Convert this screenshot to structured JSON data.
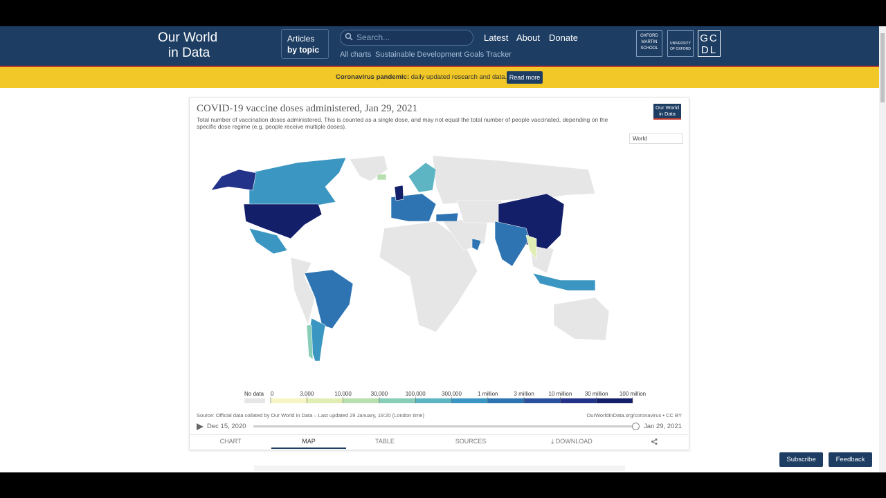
{
  "nav": {
    "logo": [
      "Our World",
      "in Data"
    ],
    "articles": [
      "Articles",
      "by topic"
    ],
    "search_placeholder": "Search...",
    "links": [
      "Latest",
      "About",
      "Donate"
    ],
    "sublinks": [
      "All charts",
      "Sustainable Development Goals Tracker"
    ],
    "partners": [
      "OXFORD MARTIN SCHOOL",
      "UNIVERSITY OF OXFORD",
      "GCDL"
    ]
  },
  "banner": {
    "bold": "Coronavirus pandemic:",
    "text": "daily updated research and data.",
    "button": "Read more"
  },
  "chart": {
    "title": "COVID-19 vaccine doses administered, Jan 29, 2021",
    "subtitle": "Total number of vaccination doses administered. This is counted as a single dose, and may not equal the total number of people vaccinated, depending on the specific dose regime (e.g. people receive multiple doses).",
    "badge": [
      "Our World",
      "in Data"
    ],
    "region_select": "World",
    "legend": {
      "no_data": "No data",
      "no_data_color": "#e6e6e6",
      "labels": [
        "0",
        "3,000",
        "10,000",
        "30,000",
        "100,000",
        "300,000",
        "1 million",
        "3 million",
        "10 million",
        "30 million",
        "100 million"
      ],
      "colors": [
        "#f7f5c5",
        "#e0eeb3",
        "#b7dfb0",
        "#88cdb8",
        "#5db5c3",
        "#3b97c2",
        "#2e74b2",
        "#2b519e",
        "#23338a",
        "#131f68"
      ]
    },
    "source": "Source: Official data collated by Our World in Data – Last updated 29 January, 19:20 (London time)",
    "url": "OurWorldInData.org/coronavirus • CC BY",
    "timeline": {
      "start": "Dec 15, 2020",
      "end": "Jan 29, 2021"
    },
    "tabs": [
      "CHART",
      "MAP",
      "TABLE",
      "SOURCES",
      "DOWNLOAD"
    ]
  },
  "footer_buttons": [
    "Subscribe",
    "Feedback"
  ]
}
